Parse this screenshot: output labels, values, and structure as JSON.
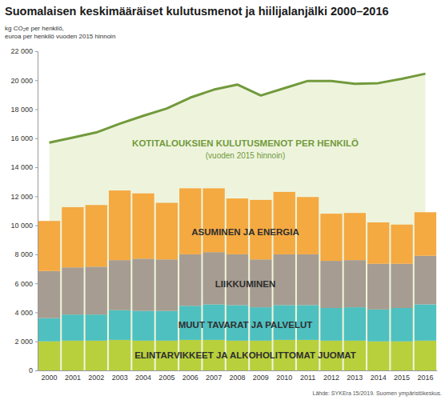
{
  "chart_data": {
    "type": "bar",
    "title": "Suomalaisen keskimääräiset kulutusmenot ja hiilijalanjälki 2000–2016",
    "ylabel": [
      "kg CO₂e per henkilö,",
      "euroa per henkilö vuoden 2015 hinnoin"
    ],
    "source": "Lähde: SYKEra 15/2019. Suomen ympäristökeskus.",
    "annotations": [
      "(vuoden 2015 hinnoin)"
    ],
    "stacked": true,
    "categories": [
      "2000",
      "2001",
      "2002",
      "2003",
      "2004",
      "2005",
      "2006",
      "2007",
      "2008",
      "2009",
      "2010",
      "2011",
      "2012",
      "2013",
      "2014",
      "2015",
      "2016"
    ],
    "series": [
      {
        "name": "ELINTARVIKKEET JA ALKOHOLITTOMAT JUOMAT",
        "type": "bar",
        "color": "#b8d03c",
        "values": [
          2000,
          2050,
          2050,
          2100,
          2050,
          2050,
          2100,
          2100,
          2050,
          2050,
          2100,
          2100,
          2050,
          2050,
          2000,
          2000,
          2050
        ]
      },
      {
        "name": "MUUT TAVARAT JA PALVELUT",
        "type": "bar",
        "color": "#4ec0c0",
        "values": [
          1600,
          1800,
          1800,
          2050,
          2050,
          2050,
          2350,
          2450,
          2450,
          2300,
          2400,
          2400,
          2250,
          2300,
          2200,
          2300,
          2500
        ]
      },
      {
        "name": "LIIKKUMINEN",
        "type": "bar",
        "color": "#a69c91",
        "values": [
          3250,
          3250,
          3300,
          3450,
          3600,
          3550,
          3550,
          3600,
          3500,
          3300,
          3500,
          3500,
          3250,
          3250,
          3150,
          3050,
          3350
        ]
      },
      {
        "name": "ASUMINEN JA ENERGIA",
        "type": "bar",
        "color": "#f5a941",
        "values": [
          3450,
          4150,
          4250,
          4800,
          4500,
          3900,
          4550,
          4400,
          3850,
          4100,
          4300,
          3950,
          3250,
          3250,
          2850,
          2700,
          3000
        ]
      },
      {
        "name": "KOTITALOUKSIEN KULUTUSMENOT PER HENKILÖ",
        "type": "line",
        "color": "#729a3c",
        "values": [
          15700,
          16050,
          16400,
          17000,
          17550,
          18050,
          18800,
          19350,
          19700,
          18950,
          19450,
          19950,
          19950,
          19750,
          19800,
          20100,
          20450
        ]
      }
    ],
    "ylim": [
      0,
      22000
    ],
    "yticks": [
      0,
      {
        "value": 2000,
        "label": "2 000"
      },
      {
        "value": 4000,
        "label": "4 000"
      },
      {
        "value": 6000,
        "label": "6 000"
      },
      {
        "value": 8000,
        "label": "8 000"
      },
      {
        "value": 10000,
        "label": "10 000"
      },
      {
        "value": 12000,
        "label": "12 000"
      },
      {
        "value": 14000,
        "label": "14 000"
      },
      {
        "value": 16000,
        "label": "16 000"
      },
      {
        "value": 18000,
        "label": "18 000"
      },
      {
        "value": 20000,
        "label": "20 000"
      },
      {
        "value": 22000,
        "label": "22 000"
      }
    ],
    "grid": false
  }
}
